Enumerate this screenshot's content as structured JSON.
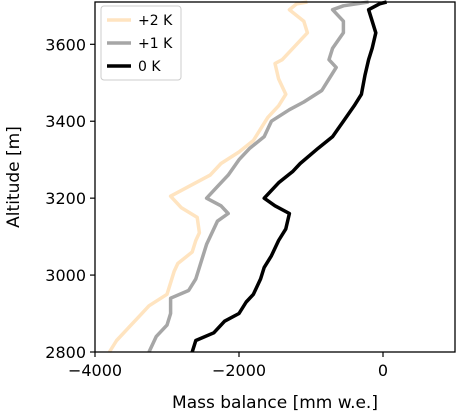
{
  "chart_data": {
    "type": "line",
    "xlabel": "Mass balance [mm w.e.]",
    "ylabel": "Altitude [m]",
    "xlim": [
      -4000,
      1000
    ],
    "ylim": [
      2800,
      3710
    ],
    "xticks": [
      -4000,
      -2000,
      0
    ],
    "xtick_labels": [
      "−4000",
      "−2000",
      "0"
    ],
    "yticks": [
      2800,
      3000,
      3200,
      3400,
      3600
    ],
    "ytick_labels": [
      "2800",
      "3000",
      "3200",
      "3400",
      "3600"
    ],
    "grid": false,
    "legend_position": "top-left",
    "series": [
      {
        "name": "+2 K",
        "color": "#ffe4c0",
        "points": [
          [
            -3800,
            2800
          ],
          [
            -3700,
            2830
          ],
          [
            -3550,
            2860
          ],
          [
            -3400,
            2890
          ],
          [
            -3250,
            2920
          ],
          [
            -3000,
            2950
          ],
          [
            -2950,
            2980
          ],
          [
            -2900,
            3010
          ],
          [
            -2850,
            3030
          ],
          [
            -2650,
            3060
          ],
          [
            -2600,
            3090
          ],
          [
            -2550,
            3110
          ],
          [
            -2580,
            3150
          ],
          [
            -2800,
            3175
          ],
          [
            -2950,
            3205
          ],
          [
            -2700,
            3230
          ],
          [
            -2400,
            3260
          ],
          [
            -2250,
            3290
          ],
          [
            -2000,
            3320
          ],
          [
            -1800,
            3350
          ],
          [
            -1700,
            3380
          ],
          [
            -1600,
            3410
          ],
          [
            -1450,
            3440
          ],
          [
            -1350,
            3470
          ],
          [
            -1450,
            3510
          ],
          [
            -1500,
            3550
          ],
          [
            -1400,
            3560
          ],
          [
            -1250,
            3590
          ],
          [
            -1050,
            3630
          ],
          [
            -1100,
            3660
          ],
          [
            -1300,
            3690
          ],
          [
            -1200,
            3705
          ],
          [
            -1050,
            3710
          ]
        ]
      },
      {
        "name": "+1 K",
        "color": "#a6a6a6",
        "points": [
          [
            -3250,
            2800
          ],
          [
            -3150,
            2840
          ],
          [
            -3000,
            2870
          ],
          [
            -2950,
            2900
          ],
          [
            -2950,
            2940
          ],
          [
            -2700,
            2960
          ],
          [
            -2600,
            2990
          ],
          [
            -2550,
            3020
          ],
          [
            -2500,
            3050
          ],
          [
            -2450,
            3080
          ],
          [
            -2400,
            3100
          ],
          [
            -2300,
            3140
          ],
          [
            -2150,
            3160
          ],
          [
            -2250,
            3180
          ],
          [
            -2450,
            3200
          ],
          [
            -2300,
            3230
          ],
          [
            -2150,
            3260
          ],
          [
            -2000,
            3300
          ],
          [
            -1850,
            3330
          ],
          [
            -1650,
            3360
          ],
          [
            -1550,
            3400
          ],
          [
            -1300,
            3430
          ],
          [
            -1100,
            3450
          ],
          [
            -850,
            3480
          ],
          [
            -750,
            3510
          ],
          [
            -650,
            3540
          ],
          [
            -750,
            3560
          ],
          [
            -700,
            3590
          ],
          [
            -550,
            3630
          ],
          [
            -550,
            3660
          ],
          [
            -700,
            3690
          ],
          [
            -550,
            3700
          ],
          [
            -200,
            3710
          ]
        ]
      },
      {
        "name": "0 K",
        "color": "#000000",
        "points": [
          [
            -2650,
            2800
          ],
          [
            -2600,
            2830
          ],
          [
            -2350,
            2850
          ],
          [
            -2200,
            2880
          ],
          [
            -2000,
            2900
          ],
          [
            -1900,
            2930
          ],
          [
            -1800,
            2950
          ],
          [
            -1700,
            2990
          ],
          [
            -1650,
            3020
          ],
          [
            -1550,
            3050
          ],
          [
            -1450,
            3090
          ],
          [
            -1350,
            3120
          ],
          [
            -1300,
            3160
          ],
          [
            -1500,
            3180
          ],
          [
            -1650,
            3200
          ],
          [
            -1450,
            3240
          ],
          [
            -1250,
            3270
          ],
          [
            -1150,
            3290
          ],
          [
            -900,
            3330
          ],
          [
            -700,
            3360
          ],
          [
            -550,
            3400
          ],
          [
            -400,
            3440
          ],
          [
            -300,
            3470
          ],
          [
            -250,
            3520
          ],
          [
            -200,
            3560
          ],
          [
            -150,
            3590
          ],
          [
            -100,
            3630
          ],
          [
            -150,
            3660
          ],
          [
            -200,
            3690
          ],
          [
            -50,
            3705
          ],
          [
            50,
            3710
          ]
        ]
      }
    ]
  }
}
